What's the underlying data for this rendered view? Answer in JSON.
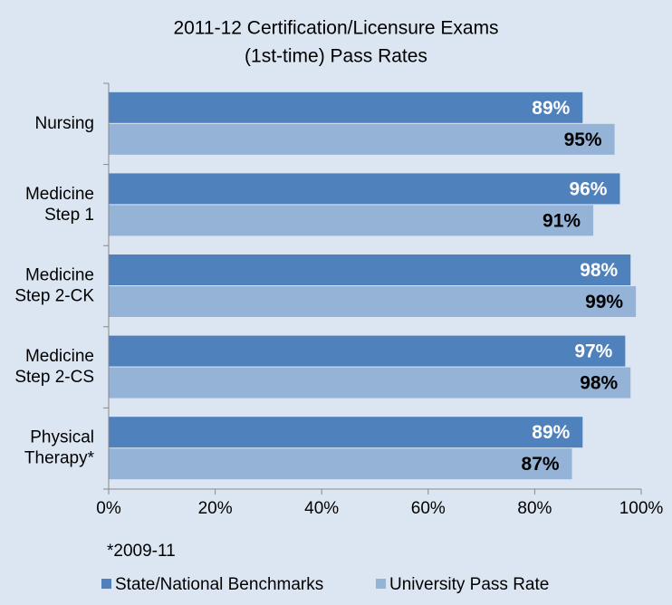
{
  "chart_data": {
    "type": "hbar",
    "title": [
      "2011-12 Certification/Licensure Exams",
      "(1st-time) Pass Rates"
    ],
    "categories": [
      [
        "Nursing"
      ],
      [
        "Medicine",
        "Step 1"
      ],
      [
        "Medicine",
        "Step 2-CK"
      ],
      [
        "Medicine",
        "Step 2-CS"
      ],
      [
        "Physical",
        "Therapy*"
      ]
    ],
    "series": [
      {
        "name": "State/National Benchmarks",
        "color": "#4f81bd",
        "label_color": "#ffffff",
        "values": [
          89,
          96,
          98,
          97,
          89
        ],
        "value_labels": [
          "89%",
          "96%",
          "98%",
          "97%",
          "89%"
        ]
      },
      {
        "name": "University Pass Rate",
        "color": "#95b3d7",
        "label_color": "#000000",
        "values": [
          95,
          91,
          99,
          98,
          87
        ],
        "value_labels": [
          "95%",
          "91%",
          "99%",
          "98%",
          "87%"
        ]
      }
    ],
    "xlim": [
      0,
      100
    ],
    "xticks": [
      {
        "value": 0,
        "label": "0%"
      },
      {
        "value": 20,
        "label": "20%"
      },
      {
        "value": 40,
        "label": "40%"
      },
      {
        "value": 60,
        "label": "60%"
      },
      {
        "value": 80,
        "label": "80%"
      },
      {
        "value": 100,
        "label": "100%"
      }
    ],
    "note": "*2009-11",
    "legend": "bottom"
  }
}
